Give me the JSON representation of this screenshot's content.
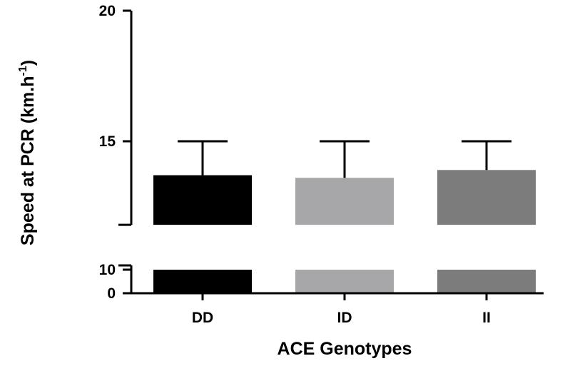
{
  "chart_data": {
    "type": "bar",
    "xlabel": "ACE Genotypes",
    "ylabel_main": "Speed at PCR (km.h",
    "ylabel_sup": "-1",
    "ylabel_close": ")",
    "categories": [
      "DD",
      "ID",
      "II"
    ],
    "values": [
      13.7,
      13.6,
      13.9
    ],
    "error_upper": [
      15.0,
      15.0,
      15.0
    ],
    "colors": [
      "#000000",
      "#a7a7a9",
      "#7c7c7c"
    ],
    "y_axis_broken": true,
    "y_segments": [
      {
        "range": [
          0,
          10
        ],
        "ticks": [
          0,
          10
        ]
      },
      {
        "range": [
          11.8,
          20
        ],
        "ticks": [
          15,
          20
        ]
      }
    ],
    "grid": false,
    "legend": "none"
  }
}
